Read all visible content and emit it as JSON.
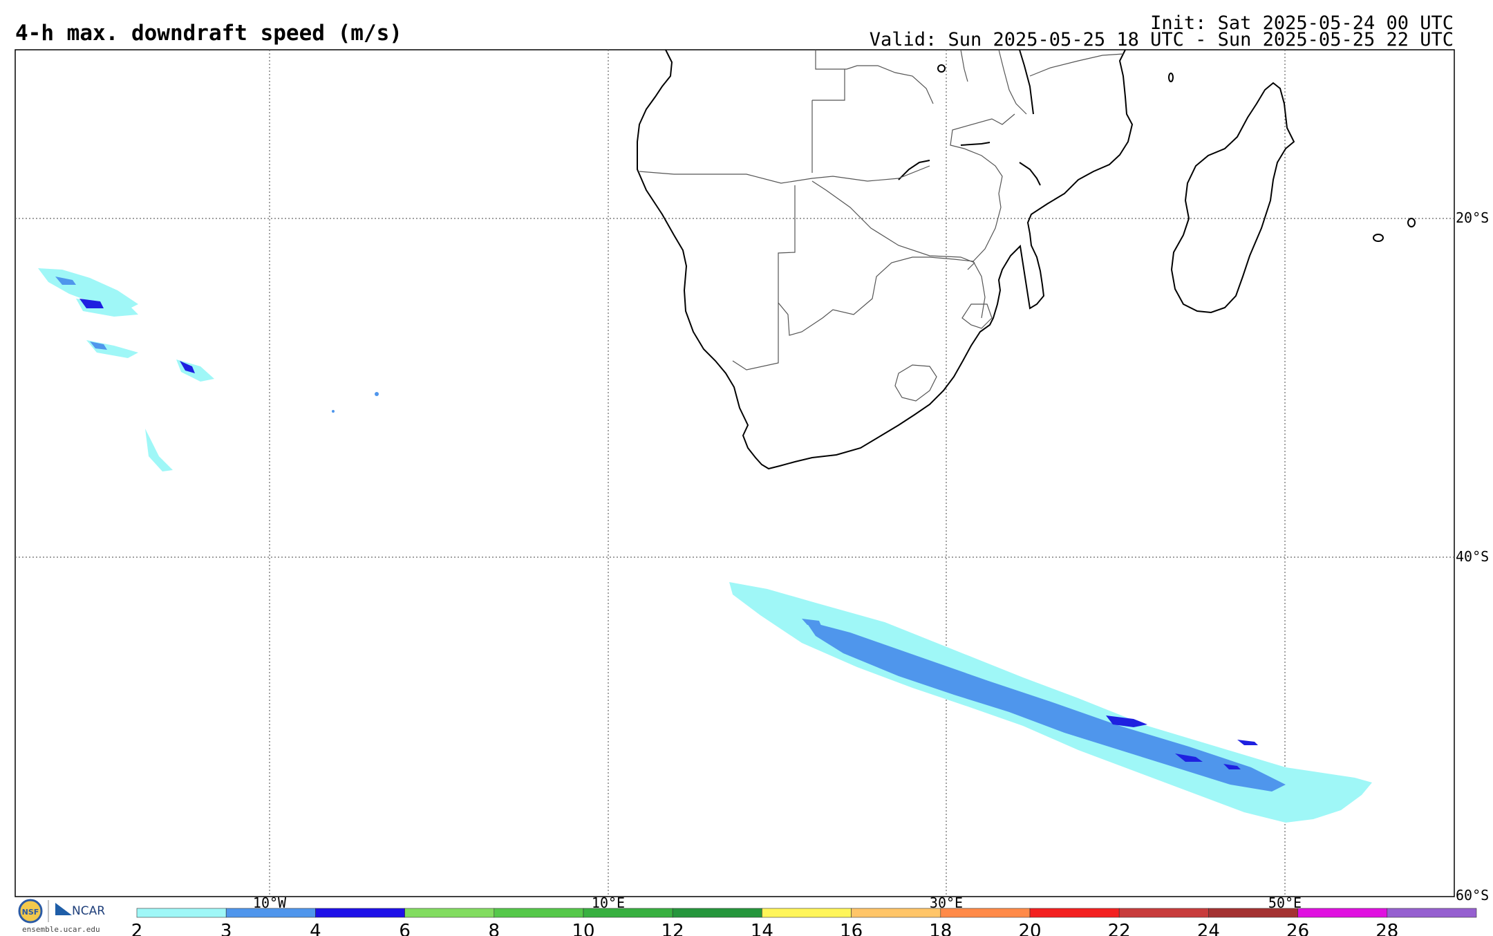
{
  "header": {
    "title": "4-h max. downdraft speed (m/s)",
    "init": "Init: Sat 2025-05-24 00 UTC",
    "valid": "Valid: Sun 2025-05-25 18 UTC - Sun 2025-05-25 22 UTC"
  },
  "map": {
    "region": "Southern Africa / South Atlantic / SW Indian Ocean",
    "longitude_labels": [
      "10°W",
      "10°E",
      "30°E",
      "50°E"
    ],
    "latitude_labels": [
      "20°S",
      "40°S",
      "60°S"
    ],
    "field_colors": {
      "light": "#9ff7f7",
      "medium": "#4f96ec",
      "dark": "#1e20e0"
    }
  },
  "colorbar": {
    "labels": [
      "2",
      "3",
      "4",
      "6",
      "8",
      "10",
      "12",
      "14",
      "16",
      "18",
      "20",
      "22",
      "24",
      "26",
      "28"
    ],
    "colors": [
      "#9ff7f7",
      "#4f96ec",
      "#1e10e8",
      "#82dc60",
      "#55c84a",
      "#38b040",
      "#25963c",
      "#fff55a",
      "#ffc568",
      "#ff8a48",
      "#f32020",
      "#c83c3c",
      "#a43232",
      "#e010e0",
      "#9660d0"
    ]
  },
  "footer": {
    "logo_nsf": "NSF",
    "logo_ncar": "NCAR",
    "site": "ensemble.ucar.edu"
  }
}
